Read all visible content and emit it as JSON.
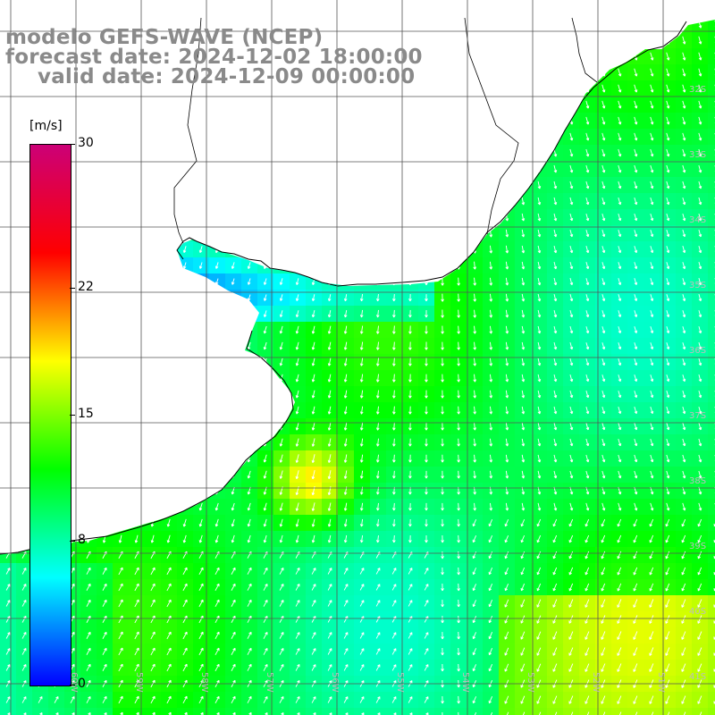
{
  "title": {
    "line1": "modelo GEFS-WAVE (NCEP)",
    "line2": "forecast date: 2024-12-02 18:00:00",
    "line3": "valid date: 2024-12-09 00:00:00"
  },
  "colorbar": {
    "units": "[m/s]",
    "ticks": [
      {
        "value": 30,
        "label": "30"
      },
      {
        "value": 22,
        "label": "22"
      },
      {
        "value": 15,
        "label": "15"
      },
      {
        "value": 8,
        "label": "8"
      },
      {
        "value": 0,
        "label": "0"
      }
    ],
    "colors": [
      "#0000ff",
      "#00ffff",
      "#00ff00",
      "#ffff00",
      "#ff0000",
      "#cc0077"
    ]
  },
  "grid": {
    "lat_labels": [
      "32S",
      "33S",
      "34S",
      "35S",
      "36S",
      "37S",
      "38S",
      "39S",
      "40S",
      "41S"
    ],
    "lon_labels": [
      "60W",
      "59W",
      "58W",
      "57W",
      "56W",
      "55W",
      "54W",
      "53W",
      "52W",
      "51W"
    ]
  },
  "field": {
    "variable": "wind speed",
    "units": "m/s",
    "land_color": "#ffffff",
    "coast_color": "#000000"
  }
}
